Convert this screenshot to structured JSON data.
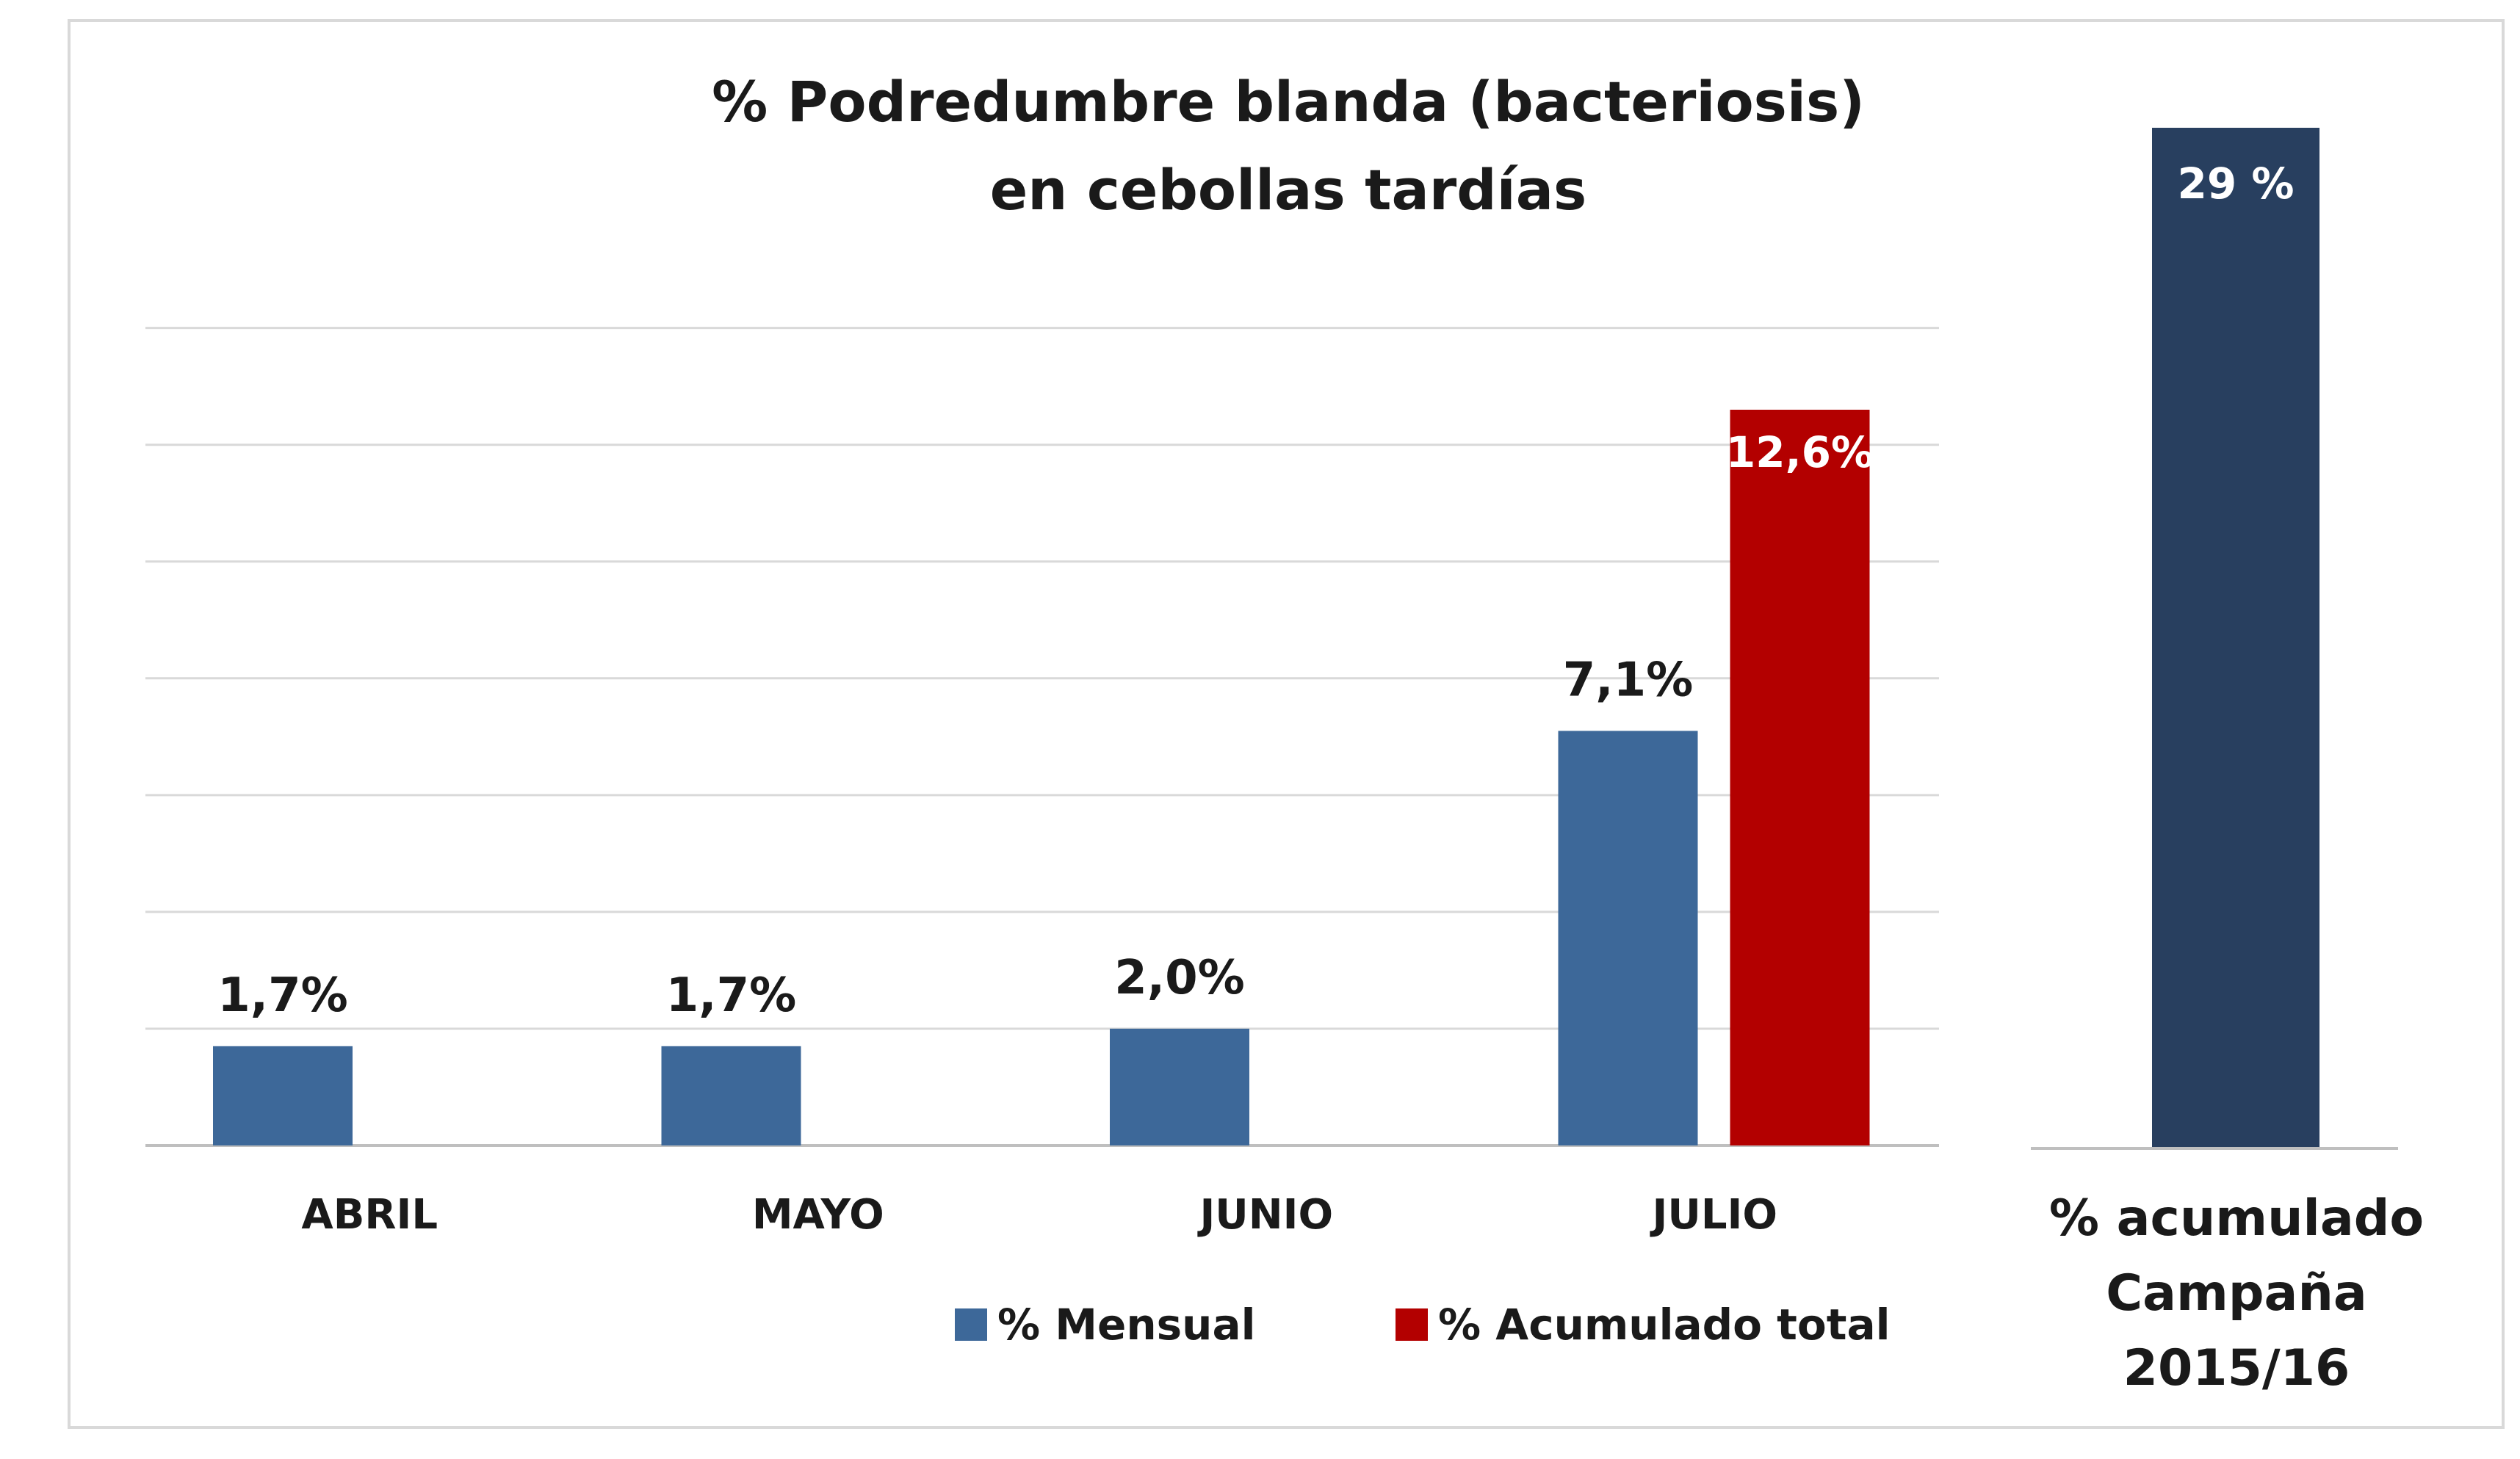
{
  "chart_data": [
    {
      "type": "bar",
      "title": [
        "% Podredumbre blanda (bacteriosis)",
        "en cebollas tardías"
      ],
      "categories": [
        "ABRIL",
        "MAYO",
        "JUNIO",
        "JULIO"
      ],
      "series": [
        {
          "name": "% Mensual",
          "color": "#3d6899",
          "values": [
            1.7,
            1.7,
            2.0,
            7.1
          ],
          "labels": [
            "1,7%",
            "1,7%",
            "2,0%",
            "7,1%"
          ]
        },
        {
          "name": "% Acumulado total",
          "color": "#b30000",
          "values": [
            null,
            null,
            null,
            12.6
          ],
          "labels": [
            null,
            null,
            null,
            "12,6%"
          ]
        }
      ],
      "ylim": [
        0,
        14
      ],
      "gridlines": true,
      "y_tick_labels_shown": false,
      "legend_position": "bottom"
    },
    {
      "type": "bar",
      "categories": [
        "% acumulado Campaña 2015/16"
      ],
      "category_lines": [
        "% acumulado",
        "Campaña",
        "2015/16"
      ],
      "values": [
        29
      ],
      "labels": [
        "29 %"
      ],
      "color": "#283f5f",
      "ylim": [
        0,
        29
      ]
    }
  ]
}
